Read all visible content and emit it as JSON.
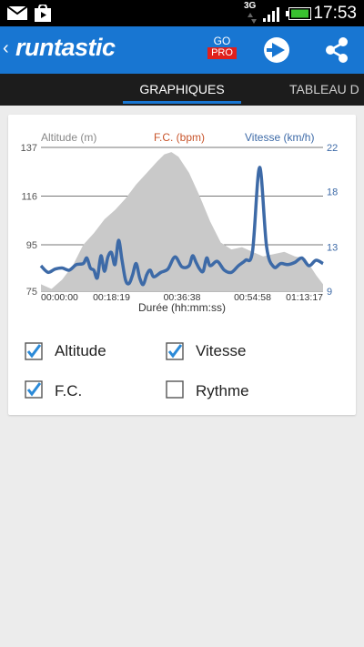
{
  "status": {
    "network": "3G",
    "time": "17:53",
    "icons": [
      "mail-icon",
      "store-icon",
      "network-3g-icon",
      "signal-icon",
      "battery-icon"
    ]
  },
  "appbar": {
    "back_glyph": "‹",
    "brand": "runtastic",
    "go_label": "GO",
    "pro_label": "PRO",
    "accent": "#1876d2",
    "pro_color": "#e0201c"
  },
  "tabs": [
    {
      "label": "GRAPHIQUES",
      "active": true
    },
    {
      "label": "TABLEAU D",
      "active": false
    }
  ],
  "chart": {
    "legend": {
      "altitude": "Altitude (m)",
      "hr": "F.C. (bpm)",
      "speed": "Vitesse (km/h)"
    },
    "legend_colors": {
      "altitude": "#888888",
      "hr": "#c8542a",
      "speed": "#3d6aa7"
    },
    "x_title": "Durée (hh:mm:ss)"
  },
  "chart_data": {
    "type": "area",
    "xlabel": "Durée (hh:mm:ss)",
    "x_ticks": [
      "00:00:00",
      "00:18:19",
      "00:36:38",
      "00:54:58",
      "01:13:17"
    ],
    "x_range_minutes": [
      0,
      80
    ],
    "left_axis": {
      "label": "Altitude (m)",
      "ticks": [
        137,
        116,
        95,
        75
      ],
      "ylim": [
        75,
        137
      ]
    },
    "right_axis": {
      "label": "Vitesse (km/h)",
      "ticks": [
        22,
        18,
        13,
        9
      ],
      "ylim": [
        9,
        22
      ]
    },
    "series": [
      {
        "name": "Altitude (m)",
        "type": "area",
        "color": "#c9c9c9",
        "x": [
          0,
          3,
          6,
          9,
          12,
          15,
          18,
          21,
          24,
          27,
          30,
          33,
          35,
          37,
          39,
          42,
          45,
          48,
          51,
          54,
          57,
          60,
          63,
          66,
          69,
          72,
          75,
          78,
          80
        ],
        "values": [
          78,
          76,
          80,
          86,
          95,
          100,
          106,
          110,
          115,
          121,
          126,
          131,
          134,
          135,
          133,
          126,
          116,
          105,
          96,
          93,
          94,
          92,
          90,
          91,
          92,
          90,
          89,
          82,
          78
        ]
      },
      {
        "name": "Vitesse (km/h)",
        "type": "line",
        "color": "#3d6aa7",
        "x": [
          0,
          2,
          4,
          6,
          8,
          10,
          12,
          13,
          14,
          15,
          16,
          17,
          18,
          19,
          20,
          21,
          22,
          23,
          24,
          25,
          26,
          27,
          28,
          29,
          30,
          31,
          32,
          34,
          36,
          38,
          40,
          42,
          43,
          44,
          45,
          46,
          47,
          48,
          50,
          52,
          54,
          56,
          58,
          60,
          62,
          64,
          66,
          68,
          70,
          72,
          74,
          76,
          78,
          80
        ],
        "values": [
          11.3,
          10.7,
          11.0,
          11.1,
          10.9,
          11.4,
          11.5,
          12.0,
          11.1,
          10.9,
          10.2,
          12.2,
          10.8,
          12.1,
          12.5,
          11.4,
          13.6,
          11.8,
          10.0,
          9.7,
          10.5,
          11.5,
          10.2,
          9.6,
          10.5,
          10.9,
          10.3,
          10.7,
          11.0,
          12.1,
          11.2,
          11.3,
          12.2,
          11.6,
          11.0,
          10.8,
          12.0,
          11.3,
          11.7,
          10.9,
          10.7,
          11.3,
          11.8,
          12.6,
          20.2,
          13.0,
          11.2,
          11.5,
          11.4,
          11.6,
          12.0,
          11.3,
          11.8,
          11.5
        ]
      }
    ]
  },
  "checkboxes": [
    {
      "label": "Altitude",
      "checked": true
    },
    {
      "label": "Vitesse",
      "checked": true
    },
    {
      "label": "F.C.",
      "checked": true
    },
    {
      "label": "Rythme",
      "checked": false
    }
  ]
}
